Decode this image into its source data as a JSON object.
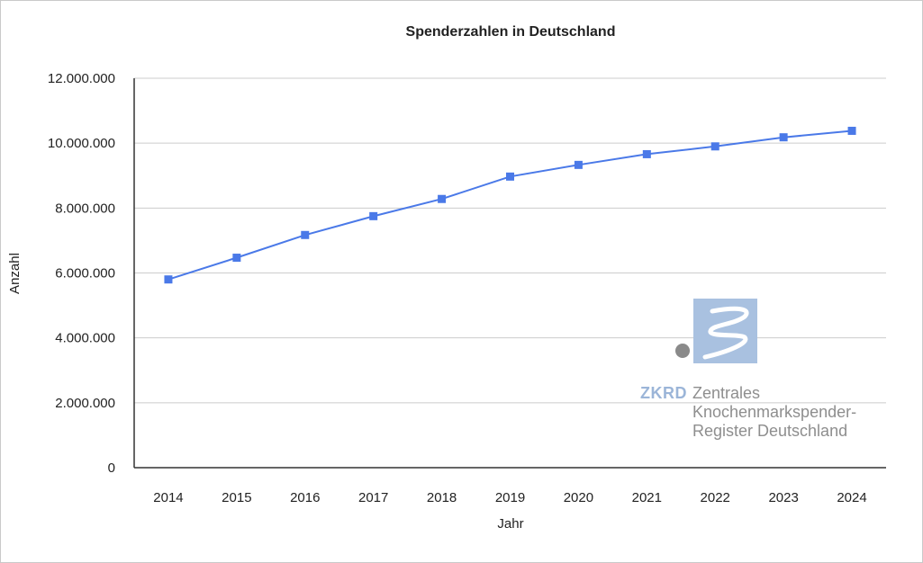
{
  "chart_data": {
    "type": "line",
    "title": "Spenderzahlen in Deutschland",
    "xlabel": "Jahr",
    "ylabel": "Anzahl",
    "categories": [
      "2014",
      "2015",
      "2016",
      "2017",
      "2018",
      "2019",
      "2020",
      "2021",
      "2022",
      "2023",
      "2024"
    ],
    "series": [
      {
        "values": [
          5800000,
          6470000,
          7170000,
          7750000,
          8280000,
          8970000,
          9330000,
          9660000,
          9900000,
          10180000,
          10380000
        ],
        "color": "#4a79e8",
        "marker": "square"
      }
    ],
    "ylim": [
      0,
      12000000
    ],
    "yticks": [
      0,
      2000000,
      4000000,
      6000000,
      8000000,
      10000000,
      12000000
    ],
    "ytick_labels": [
      "0",
      "2.000.000",
      "4.000.000",
      "6.000.000",
      "8.000.000",
      "10.000.000",
      "12.000.000"
    ],
    "grid": true,
    "gridline_color": "#cccccc"
  },
  "watermark": {
    "acronym": "ZKRD",
    "lines": [
      "Zentrales",
      "Knochenmarkspender-",
      "Register Deutschland"
    ],
    "colors": {
      "box": "#a9c1e0",
      "dot": "#8a8a8a",
      "acronym": "#9bb5d8",
      "text": "#8e8e8e"
    }
  }
}
